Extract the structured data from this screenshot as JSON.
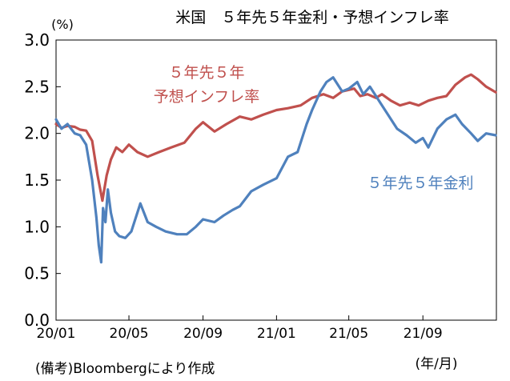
{
  "chart_data": {
    "type": "line",
    "title": "米国　５年先５年金利・予想インフレ率",
    "ylabel": "(%)",
    "xlabel": "(年/月)",
    "source_note": "(備考)Bloombergにより作成",
    "ylim": [
      0,
      3.0
    ],
    "y_ticks": [
      "0.0",
      "0.5",
      "1.0",
      "1.5",
      "2.0",
      "2.5",
      "3.0"
    ],
    "x_range": [
      "2020-01-01",
      "2021-12-31"
    ],
    "x_ticks": [
      {
        "date": "2020-01-01",
        "label": "20/01"
      },
      {
        "date": "2020-05-01",
        "label": "20/05"
      },
      {
        "date": "2020-09-01",
        "label": "20/09"
      },
      {
        "date": "2021-01-01",
        "label": "21/01"
      },
      {
        "date": "2021-05-01",
        "label": "21/05"
      },
      {
        "date": "2021-09-01",
        "label": "21/09"
      }
    ],
    "grid": false,
    "series": [
      {
        "name": "５年先５年予想インフレ率",
        "label_lines": [
          "５年先５年",
          "予想インフレ率"
        ],
        "color": "#c0504d",
        "points": [
          [
            "2020-01-01",
            2.1
          ],
          [
            "2020-01-10",
            2.06
          ],
          [
            "2020-01-20",
            2.08
          ],
          [
            "2020-02-01",
            2.07
          ],
          [
            "2020-02-10",
            2.04
          ],
          [
            "2020-02-20",
            2.03
          ],
          [
            "2020-03-01",
            1.92
          ],
          [
            "2020-03-10",
            1.55
          ],
          [
            "2020-03-18",
            1.28
          ],
          [
            "2020-03-25",
            1.55
          ],
          [
            "2020-04-01",
            1.72
          ],
          [
            "2020-04-10",
            1.85
          ],
          [
            "2020-04-20",
            1.8
          ],
          [
            "2020-05-01",
            1.88
          ],
          [
            "2020-05-15",
            1.8
          ],
          [
            "2020-06-01",
            1.75
          ],
          [
            "2020-06-20",
            1.8
          ],
          [
            "2020-07-10",
            1.85
          ],
          [
            "2020-08-01",
            1.9
          ],
          [
            "2020-08-20",
            2.05
          ],
          [
            "2020-09-01",
            2.12
          ],
          [
            "2020-09-20",
            2.02
          ],
          [
            "2020-10-10",
            2.1
          ],
          [
            "2020-11-01",
            2.18
          ],
          [
            "2020-11-20",
            2.15
          ],
          [
            "2020-12-10",
            2.2
          ],
          [
            "2021-01-01",
            2.25
          ],
          [
            "2021-01-20",
            2.27
          ],
          [
            "2021-02-10",
            2.3
          ],
          [
            "2021-03-01",
            2.38
          ],
          [
            "2021-03-20",
            2.42
          ],
          [
            "2021-04-05",
            2.38
          ],
          [
            "2021-04-20",
            2.45
          ],
          [
            "2021-05-10",
            2.48
          ],
          [
            "2021-05-20",
            2.4
          ],
          [
            "2021-06-01",
            2.42
          ],
          [
            "2021-06-15",
            2.38
          ],
          [
            "2021-06-25",
            2.42
          ],
          [
            "2021-07-10",
            2.35
          ],
          [
            "2021-07-25",
            2.3
          ],
          [
            "2021-08-10",
            2.33
          ],
          [
            "2021-08-25",
            2.3
          ],
          [
            "2021-09-10",
            2.35
          ],
          [
            "2021-09-25",
            2.38
          ],
          [
            "2021-10-10",
            2.4
          ],
          [
            "2021-10-25",
            2.52
          ],
          [
            "2021-11-10",
            2.6
          ],
          [
            "2021-11-20",
            2.63
          ],
          [
            "2021-12-01",
            2.58
          ],
          [
            "2021-12-15",
            2.5
          ],
          [
            "2021-12-31",
            2.44
          ]
        ]
      },
      {
        "name": "５年先５年金利",
        "label_lines": [
          "５年先５年金利"
        ],
        "color": "#4f81bd",
        "points": [
          [
            "2020-01-01",
            2.15
          ],
          [
            "2020-01-10",
            2.05
          ],
          [
            "2020-01-20",
            2.1
          ],
          [
            "2020-02-01",
            2.0
          ],
          [
            "2020-02-10",
            1.98
          ],
          [
            "2020-02-20",
            1.88
          ],
          [
            "2020-03-01",
            1.5
          ],
          [
            "2020-03-08",
            1.1
          ],
          [
            "2020-03-12",
            0.8
          ],
          [
            "2020-03-16",
            0.62
          ],
          [
            "2020-03-19",
            1.2
          ],
          [
            "2020-03-23",
            1.05
          ],
          [
            "2020-03-27",
            1.4
          ],
          [
            "2020-04-01",
            1.15
          ],
          [
            "2020-04-08",
            0.95
          ],
          [
            "2020-04-15",
            0.9
          ],
          [
            "2020-04-25",
            0.88
          ],
          [
            "2020-05-05",
            0.95
          ],
          [
            "2020-05-20",
            1.25
          ],
          [
            "2020-06-01",
            1.05
          ],
          [
            "2020-06-15",
            1.0
          ],
          [
            "2020-07-01",
            0.95
          ],
          [
            "2020-07-20",
            0.92
          ],
          [
            "2020-08-05",
            0.92
          ],
          [
            "2020-08-20",
            1.0
          ],
          [
            "2020-09-01",
            1.08
          ],
          [
            "2020-09-20",
            1.05
          ],
          [
            "2020-10-05",
            1.12
          ],
          [
            "2020-10-20",
            1.18
          ],
          [
            "2020-11-01",
            1.22
          ],
          [
            "2020-11-20",
            1.38
          ],
          [
            "2020-12-10",
            1.45
          ],
          [
            "2021-01-01",
            1.52
          ],
          [
            "2021-01-20",
            1.75
          ],
          [
            "2021-02-05",
            1.8
          ],
          [
            "2021-02-20",
            2.1
          ],
          [
            "2021-03-01",
            2.25
          ],
          [
            "2021-03-15",
            2.45
          ],
          [
            "2021-03-25",
            2.55
          ],
          [
            "2021-04-05",
            2.6
          ],
          [
            "2021-04-20",
            2.45
          ],
          [
            "2021-05-01",
            2.48
          ],
          [
            "2021-05-15",
            2.55
          ],
          [
            "2021-05-25",
            2.42
          ],
          [
            "2021-06-05",
            2.5
          ],
          [
            "2021-06-20",
            2.35
          ],
          [
            "2021-07-05",
            2.2
          ],
          [
            "2021-07-20",
            2.05
          ],
          [
            "2021-08-05",
            1.98
          ],
          [
            "2021-08-20",
            1.9
          ],
          [
            "2021-09-01",
            1.95
          ],
          [
            "2021-09-10",
            1.85
          ],
          [
            "2021-09-25",
            2.05
          ],
          [
            "2021-10-10",
            2.15
          ],
          [
            "2021-10-25",
            2.2
          ],
          [
            "2021-11-05",
            2.1
          ],
          [
            "2021-11-20",
            2.0
          ],
          [
            "2021-12-01",
            1.92
          ],
          [
            "2021-12-15",
            2.0
          ],
          [
            "2021-12-31",
            1.98
          ]
        ]
      }
    ]
  }
}
